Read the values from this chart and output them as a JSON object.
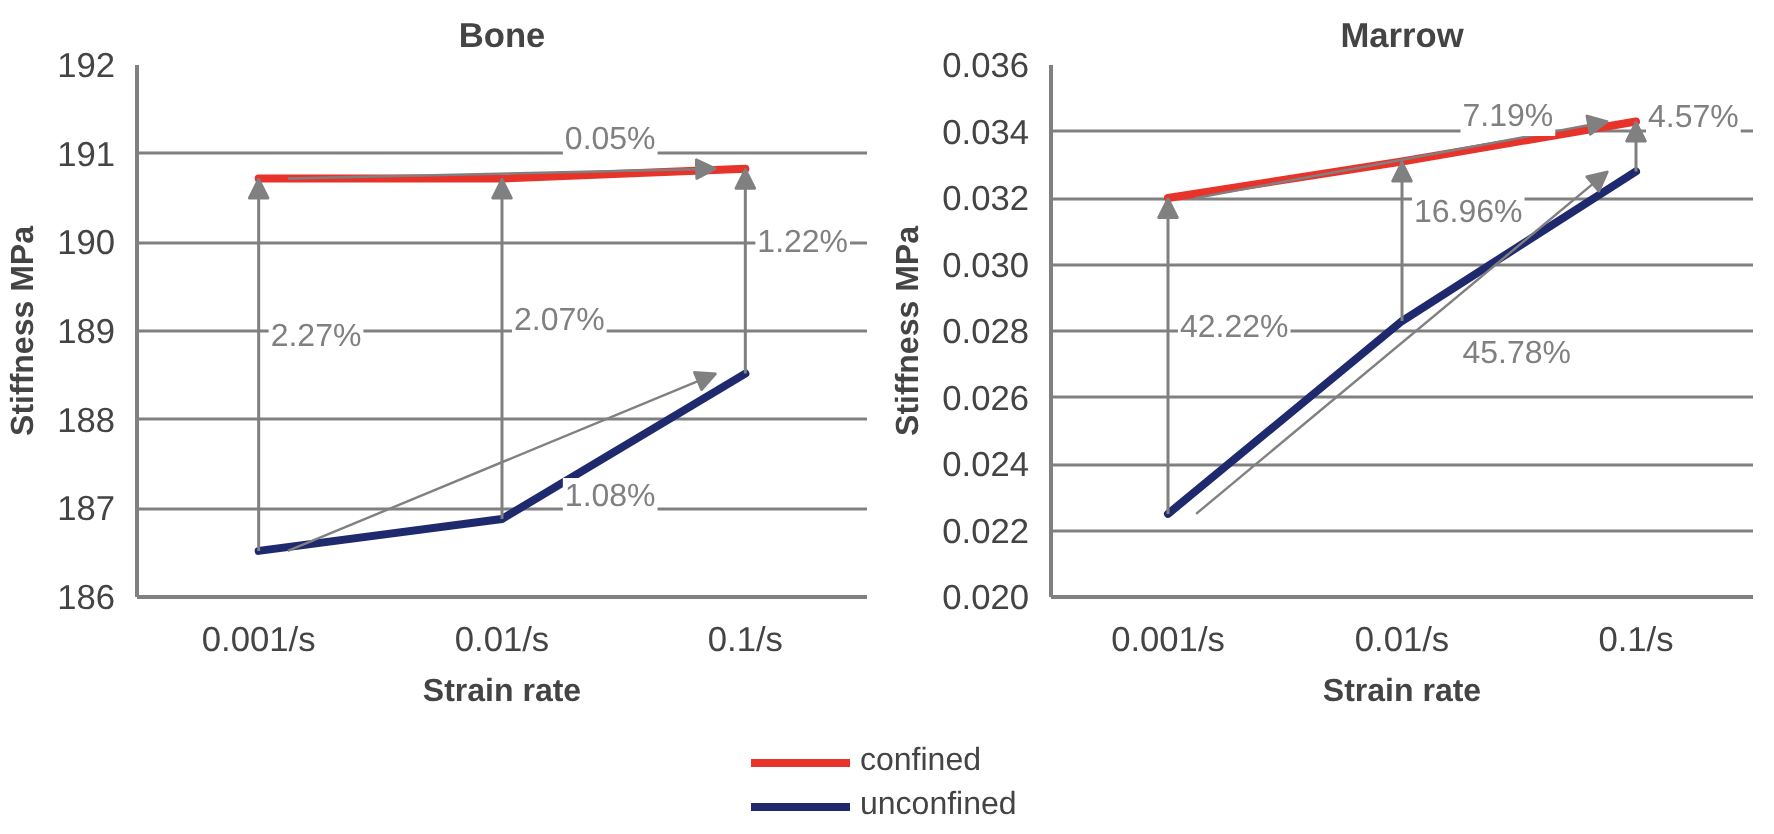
{
  "chart_data": [
    {
      "type": "line",
      "title": "Bone",
      "xlabel": "Strain rate",
      "ylabel": "Stiffness MPa",
      "categories": [
        "0.001/s",
        "0.01/s",
        "0.1/s"
      ],
      "series": [
        {
          "name": "confined",
          "color": "#e8332a",
          "values": [
            190.72,
            190.72,
            190.83
          ]
        },
        {
          "name": "unconfined",
          "color": "#1f2a6e",
          "values": [
            186.52,
            186.88,
            188.52
          ]
        }
      ],
      "ylim": [
        186,
        192
      ],
      "yticks": [
        186,
        187,
        188,
        189,
        190,
        191,
        192
      ],
      "grid": "y",
      "legend": "bottom",
      "annotations": [
        "2.27%",
        "2.07%",
        "1.22%",
        "0.05%",
        "1.08%"
      ]
    },
    {
      "type": "line",
      "title": "Marrow",
      "xlabel": "Strain rate",
      "ylabel": "Stiffness MPa",
      "categories": [
        "0.001/s",
        "0.01/s",
        "0.1/s"
      ],
      "series": [
        {
          "color": "#e8332a",
          "values": [
            0.032,
            0.0331,
            0.0343
          ]
        },
        {
          "color": "#1f2a6e",
          "values": [
            0.0225,
            0.0283,
            0.0328
          ]
        }
      ],
      "ylim": [
        0.02,
        0.036
      ],
      "yticks": [
        {
          "value": 0.02,
          "label": "0.020"
        },
        {
          "value": 0.022,
          "label": "0.022"
        },
        {
          "value": 0.024,
          "label": "0.024"
        },
        {
          "value": 0.026,
          "label": "0.026"
        },
        {
          "value": 0.028,
          "label": "0.028"
        },
        {
          "value": 0.03,
          "label": "0.030"
        },
        {
          "value": 0.032,
          "label": "0.032"
        },
        {
          "value": 0.034,
          "label": "0.034"
        },
        {
          "value": 0.036,
          "label": "0.036"
        }
      ],
      "grid": "y",
      "annotations": [
        "42.22%",
        "16.96%",
        "4.57%",
        "7.19%",
        "45.78%"
      ]
    }
  ]
}
